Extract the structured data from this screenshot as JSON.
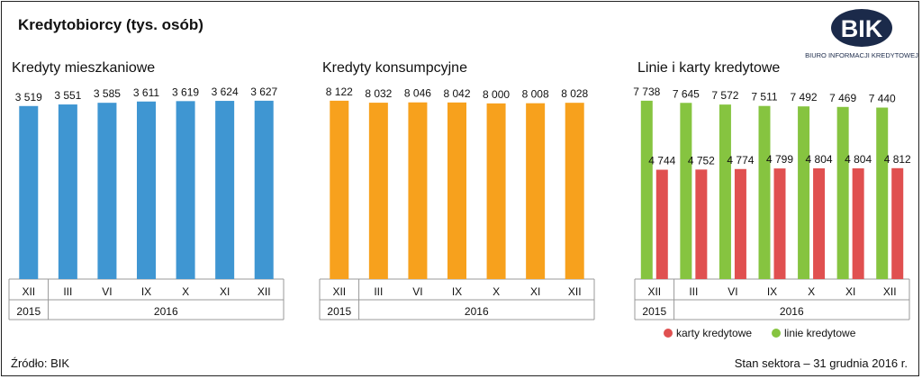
{
  "header": {
    "title": "Kredytobiorcy (tys. osób)"
  },
  "logo": {
    "text": "BIK",
    "subtitle": "BIURO INFORMACJI KREDYTOWEJ",
    "color": "#1b2a4a",
    "accent": "#c8102e"
  },
  "footer": {
    "source": "Źródło: BIK",
    "status": "Stan sektora – 31 grudnia 2016 r."
  },
  "colors": {
    "mieszkaniowe": "#3f96d2",
    "konsumpcyjne": "#f7a11d",
    "linie": "#86c440",
    "karty": "#e05050"
  },
  "chart_data": [
    {
      "type": "bar",
      "title": "Kredyty mieszkaniowe",
      "categories": [
        "XII",
        "III",
        "VI",
        "IX",
        "X",
        "XI",
        "XII"
      ],
      "years": [
        {
          "label": "2015",
          "span": 1
        },
        {
          "label": "2016",
          "span": 6
        }
      ],
      "series": [
        {
          "values": [
            3519,
            3551,
            3585,
            3611,
            3619,
            3624,
            3627
          ]
        }
      ],
      "value_labels": [
        "3 519",
        "3 551",
        "3 585",
        "3 611",
        "3 619",
        "3 624",
        "3 627"
      ]
    },
    {
      "type": "bar",
      "title": "Kredyty konsumpcyjne",
      "categories": [
        "XII",
        "III",
        "VI",
        "IX",
        "X",
        "XI",
        "XII"
      ],
      "years": [
        {
          "label": "2015",
          "span": 1
        },
        {
          "label": "2016",
          "span": 6
        }
      ],
      "series": [
        {
          "values": [
            8122,
            8032,
            8046,
            8042,
            8000,
            8008,
            8028
          ]
        }
      ],
      "value_labels": [
        "8 122",
        "8 032",
        "8 046",
        "8 042",
        "8 000",
        "8 008",
        "8 028"
      ]
    },
    {
      "type": "bar",
      "title": "Linie i karty kredytowe",
      "categories": [
        "XII",
        "III",
        "VI",
        "IX",
        "X",
        "XI",
        "XII"
      ],
      "years": [
        {
          "label": "2015",
          "span": 1
        },
        {
          "label": "2016",
          "span": 6
        }
      ],
      "series": [
        {
          "name": "linie kredytowe",
          "values": [
            7738,
            7645,
            7572,
            7511,
            7492,
            7469,
            7440
          ],
          "value_labels": [
            "7 738",
            "7 645",
            "7 572",
            "7 511",
            "7 492",
            "7 469",
            "7 440"
          ]
        },
        {
          "name": "karty kredytowe",
          "values": [
            4744,
            4752,
            4774,
            4799,
            4804,
            4804,
            4812
          ],
          "value_labels": [
            "4 744",
            "4 752",
            "4 774",
            "4 799",
            "4 804",
            "4 804",
            "4 812"
          ]
        }
      ],
      "legend": [
        "karty kredytowe",
        "linie kredytowe"
      ],
      "legend_position": "bottom"
    }
  ]
}
